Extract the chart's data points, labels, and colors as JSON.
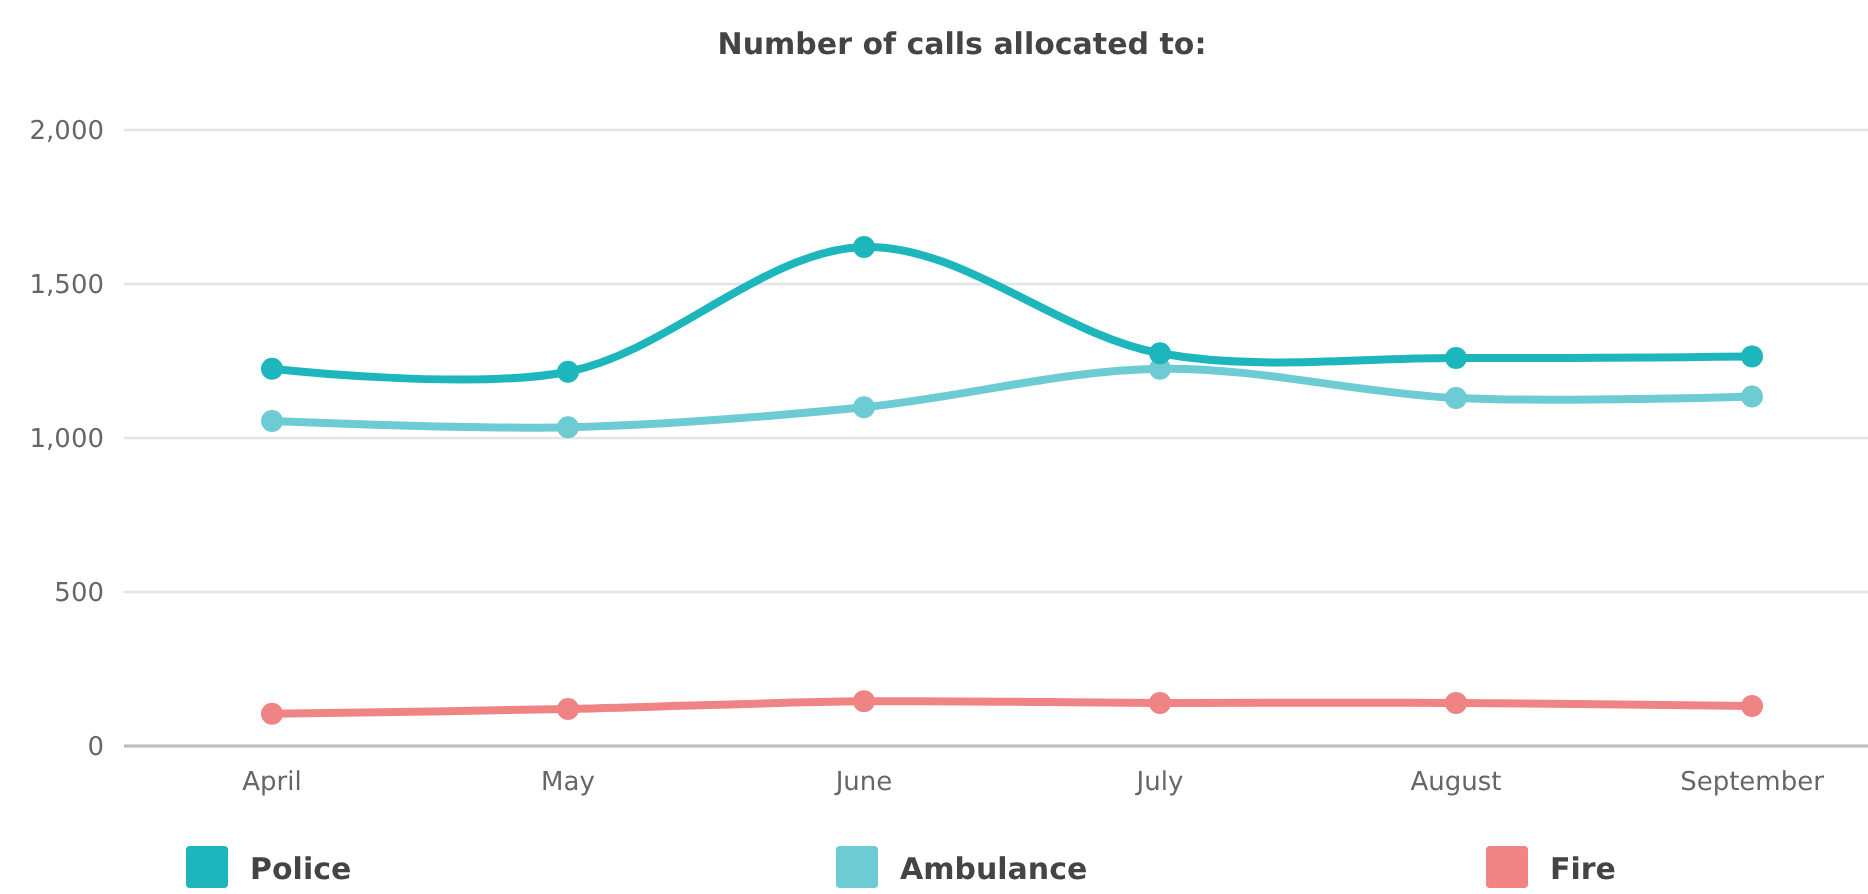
{
  "chart_data": {
    "type": "line",
    "title": "Number of calls allocated to:",
    "categories": [
      "April",
      "May",
      "June",
      "July",
      "August",
      "September"
    ],
    "series": [
      {
        "name": "Police",
        "color": "#1db6bd",
        "values": [
          1225,
          1215,
          1620,
          1275,
          1260,
          1265
        ]
      },
      {
        "name": "Ambulance",
        "color": "#6dcbd3",
        "values": [
          1055,
          1035,
          1100,
          1225,
          1130,
          1135
        ]
      },
      {
        "name": "Fire",
        "color": "#f08383",
        "values": [
          105,
          120,
          145,
          140,
          140,
          130
        ]
      }
    ],
    "ylim": [
      0,
      2000
    ],
    "yticks": [
      0,
      500,
      {
        "value": 1000,
        "label": "1,000"
      },
      {
        "value": 1500,
        "label": "1,500"
      },
      {
        "value": 2000,
        "label": "2,000"
      }
    ],
    "grid": "y",
    "legend": "bottom",
    "marker": "circle"
  }
}
